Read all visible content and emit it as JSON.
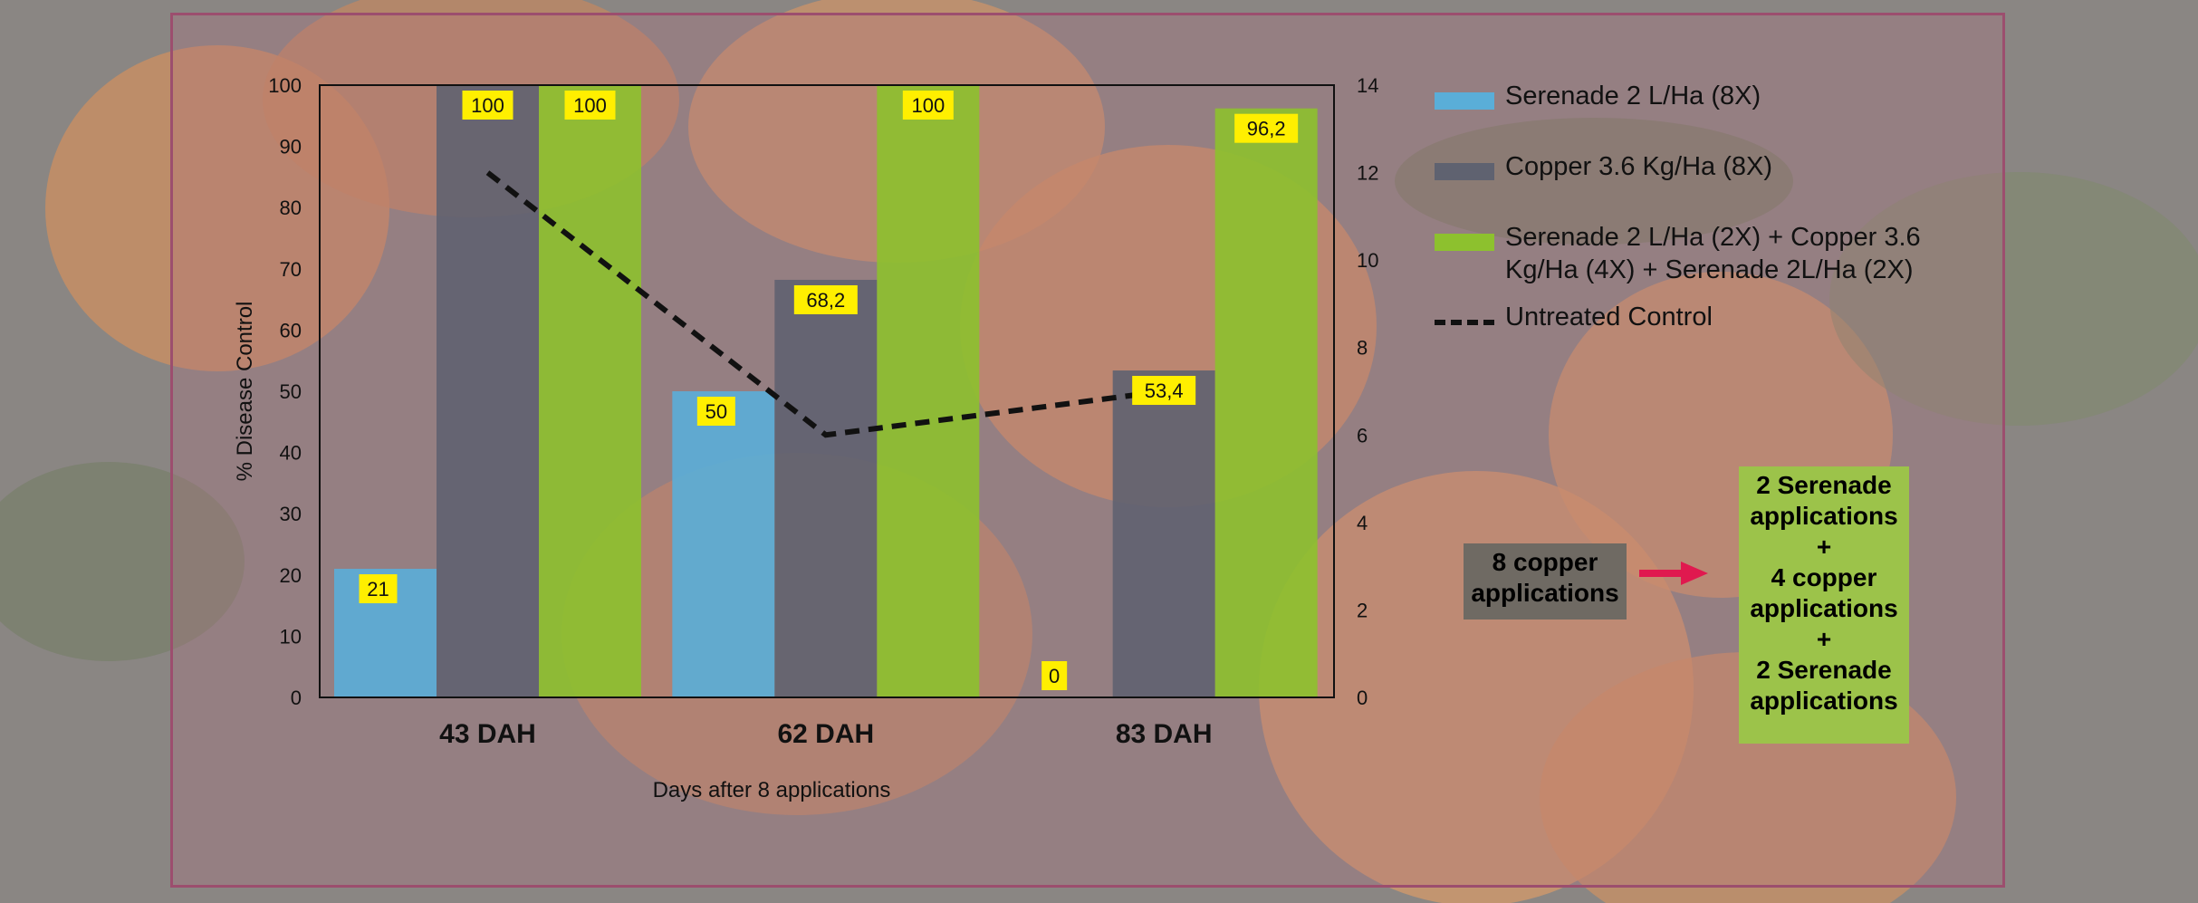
{
  "chart_data": {
    "type": "bar",
    "categories": [
      "43 DAH",
      "62 DAH",
      "83 DAH"
    ],
    "xlabel": "Days after 8 applications",
    "ylabel": "% Disease Control",
    "ylim": [
      0,
      100
    ],
    "yticks": [
      0,
      10,
      20,
      30,
      40,
      50,
      60,
      70,
      80,
      90,
      100
    ],
    "y2lim": [
      0,
      14
    ],
    "y2ticks": [
      0,
      2,
      4,
      6,
      8,
      10,
      12,
      14
    ],
    "grid": false,
    "legend_position": "right",
    "series": [
      {
        "name": "Serenade 2 L/Ha (8X)",
        "color": "#5aaed8",
        "values": [
          21,
          50,
          0
        ],
        "labels": [
          "21",
          "50",
          "0"
        ]
      },
      {
        "name": "Copper 3.6 Kg/Ha (8X)",
        "color": "#5f6270",
        "values": [
          100,
          68.2,
          53.4
        ],
        "labels": [
          "100",
          "68,2",
          "53,4"
        ]
      },
      {
        "name": "Serenade 2 L/Ha (2X) + Copper 3.6 Kg/Ha (4X) + Serenade 2L/Ha (2X)",
        "color": "#8dc12e",
        "values": [
          100,
          100,
          96.2
        ],
        "labels": [
          "100",
          "100",
          "96,2"
        ]
      }
    ],
    "line_series": {
      "name": "Untreated Control",
      "axis": "secondary",
      "style": "dashed",
      "color": "#111111",
      "values": [
        12,
        6,
        7
      ]
    }
  },
  "annotations": {
    "copper_box": "8 copper applications",
    "green_box_lines": [
      "2 Serenade",
      "applications",
      "+",
      "4 copper",
      "applications",
      "+",
      "2 Serenade",
      "applications"
    ],
    "copper_box_color": "#6f6a63",
    "green_box_color": "#9cc34a",
    "arrow_color": "#e0194f"
  }
}
